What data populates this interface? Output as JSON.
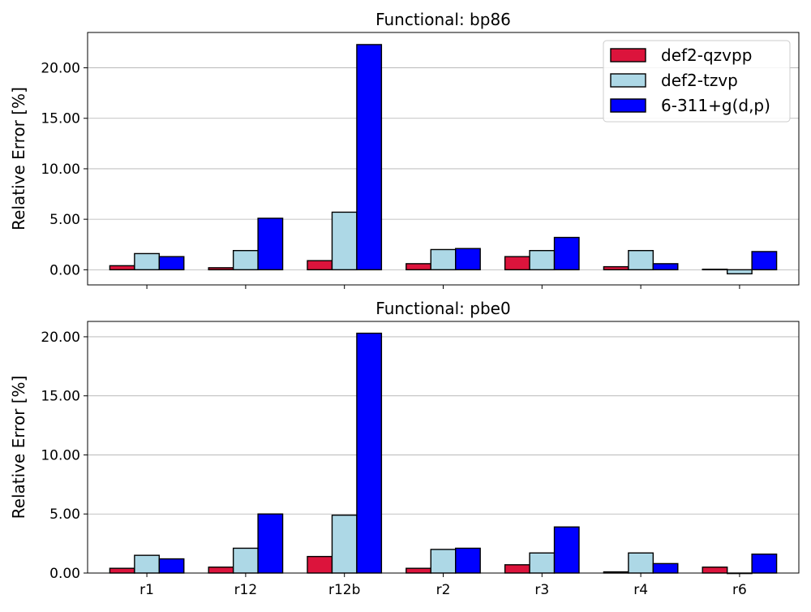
{
  "chart_data": [
    {
      "type": "bar",
      "title": "Functional: bp86",
      "xlabel": "",
      "ylabel": "Relative Error [%]",
      "categories": [
        "r1",
        "r12",
        "r12b",
        "r2",
        "r3",
        "r4",
        "r6"
      ],
      "show_x_tick_labels": false,
      "ylim": [
        -1.5,
        23.5
      ],
      "yticks": [
        0,
        5,
        10,
        15,
        20
      ],
      "ytick_labels": [
        "0.00",
        "5.00",
        "10.00",
        "15.00",
        "20.00"
      ],
      "grid": "y",
      "legend": "top-right",
      "series": [
        {
          "name": "def2-qzvpp",
          "color": "#dc143c",
          "values": [
            0.4,
            0.2,
            0.9,
            0.6,
            1.3,
            0.3,
            0.05
          ]
        },
        {
          "name": "def2-tzvp",
          "color": "#add8e6",
          "values": [
            1.6,
            1.9,
            5.7,
            2.0,
            1.9,
            1.9,
            -0.4
          ]
        },
        {
          "name": "6-311+g(d,p)",
          "color": "#0000ff",
          "values": [
            1.3,
            5.1,
            22.3,
            2.1,
            3.2,
            0.6,
            1.8
          ]
        }
      ]
    },
    {
      "type": "bar",
      "title": "Functional: pbe0",
      "xlabel": "",
      "ylabel": "Relative Error [%]",
      "categories": [
        "r1",
        "r12",
        "r12b",
        "r2",
        "r3",
        "r4",
        "r6"
      ],
      "show_x_tick_labels": true,
      "ylim": [
        0,
        21.3
      ],
      "yticks": [
        0,
        5,
        10,
        15,
        20
      ],
      "ytick_labels": [
        "0.00",
        "5.00",
        "10.00",
        "15.00",
        "20.00"
      ],
      "grid": "y",
      "legend": "none",
      "series": [
        {
          "name": "def2-qzvpp",
          "color": "#dc143c",
          "values": [
            0.4,
            0.5,
            1.4,
            0.4,
            0.7,
            0.1,
            0.5
          ]
        },
        {
          "name": "def2-tzvp",
          "color": "#add8e6",
          "values": [
            1.5,
            2.1,
            4.9,
            2.0,
            1.7,
            1.7,
            0.0
          ]
        },
        {
          "name": "6-311+g(d,p)",
          "color": "#0000ff",
          "values": [
            1.2,
            5.0,
            20.3,
            2.1,
            3.9,
            0.8,
            1.6
          ]
        }
      ]
    }
  ]
}
